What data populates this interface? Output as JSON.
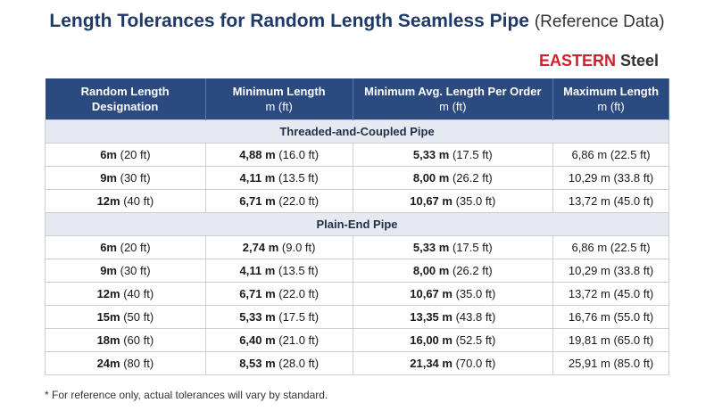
{
  "header": {
    "title": "Length Tolerances for Random Length Seamless Pipe",
    "subtitle": "(Reference Data)",
    "brand_1": "EASTERN",
    "brand_2": "Steel"
  },
  "table": {
    "headers": [
      {
        "title": "Random Length Designation",
        "unit": null
      },
      {
        "title": "Minimum Length",
        "unit": "m (ft)"
      },
      {
        "title": "Minimum Avg. Length Per Order",
        "unit": "m (ft)"
      },
      {
        "title": "Maximum Length",
        "unit": "m (ft)"
      }
    ],
    "sections": [
      {
        "title": "Threaded-and-Coupled Pipe",
        "rows": [
          [
            {
              "main": "6m",
              "sub": "(20 ft)"
            },
            {
              "main": "4,88 m",
              "sub": "(16.0 ft)"
            },
            {
              "main": "5,33 m",
              "sub": "(17.5 ft)"
            },
            {
              "main": "6,86 m",
              "sub": "(22.5 ft)"
            }
          ],
          [
            {
              "main": "9m",
              "sub": "(30 ft)"
            },
            {
              "main": "4,11 m",
              "sub": "(13.5 ft)"
            },
            {
              "main": "8,00 m",
              "sub": "(26.2 ft)"
            },
            {
              "main": "10,29 m",
              "sub": "(33.8 ft)"
            }
          ],
          [
            {
              "main": "12m",
              "sub": "(40 ft)"
            },
            {
              "main": "6,71 m",
              "sub": "(22.0 ft)"
            },
            {
              "main": "10,67 m",
              "sub": "(35.0 ft)"
            },
            {
              "main": "13,72 m",
              "sub": "(45.0 ft)"
            }
          ]
        ]
      },
      {
        "title": "Plain-End Pipe",
        "rows": [
          [
            {
              "main": "6m",
              "sub": "(20 ft)"
            },
            {
              "main": "2,74 m",
              "sub": "(9.0 ft)"
            },
            {
              "main": "5,33 m",
              "sub": "(17.5 ft)"
            },
            {
              "main": "6,86 m",
              "sub": "(22.5 ft)"
            }
          ],
          [
            {
              "main": "9m",
              "sub": "(30 ft)"
            },
            {
              "main": "4,11 m",
              "sub": "(13.5 ft)"
            },
            {
              "main": "8,00 m",
              "sub": "(26.2 ft)"
            },
            {
              "main": "10,29 m",
              "sub": "(33.8 ft)"
            }
          ],
          [
            {
              "main": "12m",
              "sub": "(40 ft)"
            },
            {
              "main": "6,71 m",
              "sub": "(22.0 ft)"
            },
            {
              "main": "10,67 m",
              "sub": "(35.0 ft)"
            },
            {
              "main": "13,72 m",
              "sub": "(45.0 ft)"
            }
          ],
          [
            {
              "main": "15m",
              "sub": "(50 ft)"
            },
            {
              "main": "5,33 m",
              "sub": "(17.5 ft)"
            },
            {
              "main": "13,35 m",
              "sub": "(43.8 ft)"
            },
            {
              "main": "16,76 m",
              "sub": "(55.0 ft)"
            }
          ],
          [
            {
              "main": "18m",
              "sub": "(60 ft)"
            },
            {
              "main": "6,40 m",
              "sub": "(21.0 ft)"
            },
            {
              "main": "16,00 m",
              "sub": "(52.5 ft)"
            },
            {
              "main": "19,81 m",
              "sub": "(65.0 ft)"
            }
          ],
          [
            {
              "main": "24m",
              "sub": "(80 ft)"
            },
            {
              "main": "8,53 m",
              "sub": "(28.0 ft)"
            },
            {
              "main": "21,34 m",
              "sub": "(70.0 ft)"
            },
            {
              "main": "25,91 m",
              "sub": "(85.0 ft)"
            }
          ]
        ]
      }
    ]
  },
  "footnote": "* For reference only, actual tolerances will vary by standard."
}
